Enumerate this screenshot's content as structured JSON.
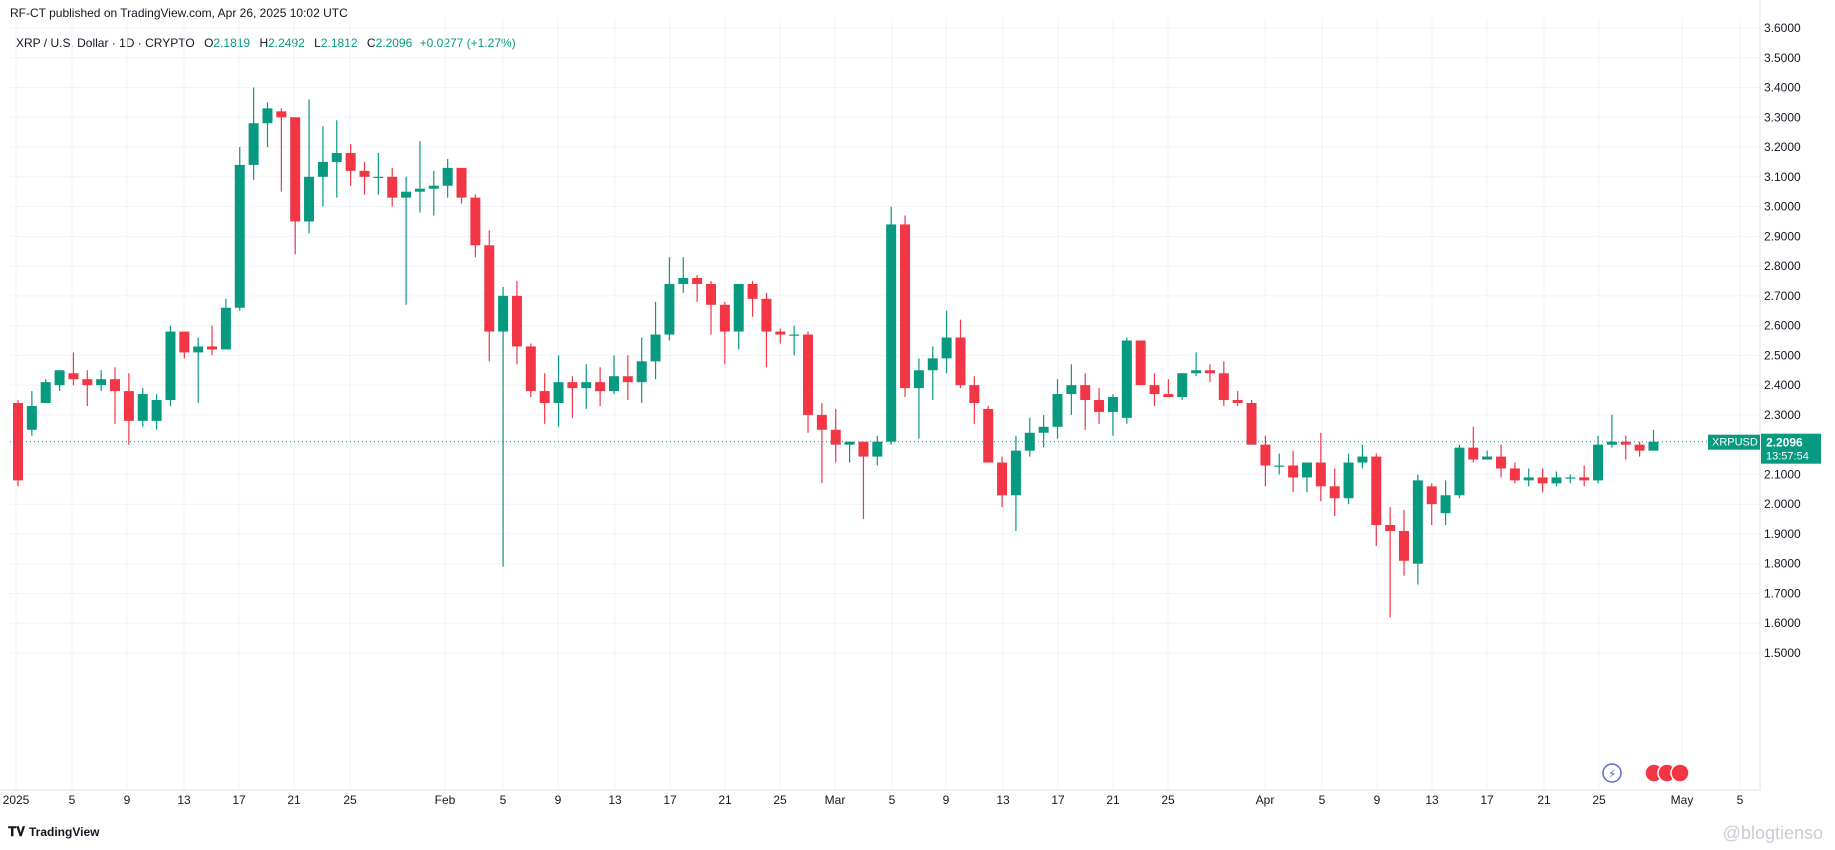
{
  "header": {
    "published": "RF-CT published on TradingView.com, Apr 26, 2025 10:02 UTC"
  },
  "symbol": {
    "name": "XRP / U.S. Dollar · 1D · CRYPTO",
    "o_label": "O",
    "o_value": "2.1819",
    "h_label": "H",
    "h_value": "2.2492",
    "l_label": "L",
    "l_value": "2.1812",
    "c_label": "C",
    "c_value": "2.2096",
    "change": "+0.0277 (+1.27%)"
  },
  "price_label": {
    "ticker": "XRPUSD",
    "price": "2.2096",
    "countdown": "13:57:54"
  },
  "footer": {
    "brand": "TradingView",
    "watermark": "@blogtienso"
  },
  "colors": {
    "up": "#089981",
    "down": "#f23645",
    "grid": "#f0f3fa",
    "text": "#131722"
  },
  "chart_data": {
    "type": "candlestick",
    "y_axis_ticks": [
      "3.6000",
      "3.5000",
      "3.4000",
      "3.3000",
      "3.2000",
      "3.1000",
      "3.0000",
      "2.9000",
      "2.8000",
      "2.7000",
      "2.6000",
      "2.5000",
      "2.4000",
      "2.3000",
      "2.2000",
      "2.1000",
      "2.0000",
      "1.9000",
      "1.8000",
      "1.7000",
      "1.6000",
      "1.5000"
    ],
    "x_axis_labels": [
      "2025",
      "5",
      "9",
      "13",
      "17",
      "21",
      "25",
      "Feb",
      "5",
      "9",
      "13",
      "17",
      "21",
      "25",
      "Mar",
      "5",
      "9",
      "13",
      "17",
      "21",
      "25",
      "Apr",
      "5",
      "9",
      "13",
      "17",
      "21",
      "25",
      "May",
      "5"
    ],
    "ylim": [
      1.45,
      3.63
    ],
    "grid": true,
    "candles": [
      [
        2.34,
        2.35,
        2.06,
        2.08
      ],
      [
        2.25,
        2.38,
        2.23,
        2.33
      ],
      [
        2.34,
        2.42,
        2.34,
        2.41
      ],
      [
        2.4,
        2.45,
        2.38,
        2.45
      ],
      [
        2.44,
        2.51,
        2.4,
        2.42
      ],
      [
        2.42,
        2.45,
        2.33,
        2.4
      ],
      [
        2.4,
        2.45,
        2.38,
        2.42
      ],
      [
        2.42,
        2.46,
        2.27,
        2.38
      ],
      [
        2.38,
        2.44,
        2.2,
        2.28
      ],
      [
        2.28,
        2.39,
        2.26,
        2.37
      ],
      [
        2.28,
        2.37,
        2.25,
        2.35
      ],
      [
        2.35,
        2.6,
        2.33,
        2.58
      ],
      [
        2.58,
        2.58,
        2.49,
        2.51
      ],
      [
        2.51,
        2.56,
        2.34,
        2.53
      ],
      [
        2.53,
        2.6,
        2.5,
        2.52
      ],
      [
        2.52,
        2.69,
        2.52,
        2.66
      ],
      [
        2.66,
        3.2,
        2.65,
        3.14
      ],
      [
        3.14,
        3.4,
        3.09,
        3.28
      ],
      [
        3.28,
        3.35,
        3.2,
        3.33
      ],
      [
        3.32,
        3.33,
        3.05,
        3.3
      ],
      [
        3.3,
        3.3,
        2.84,
        2.95
      ],
      [
        2.95,
        3.36,
        2.91,
        3.1
      ],
      [
        3.1,
        3.27,
        3.0,
        3.15
      ],
      [
        3.15,
        3.29,
        3.03,
        3.18
      ],
      [
        3.18,
        3.21,
        3.07,
        3.12
      ],
      [
        3.12,
        3.15,
        3.04,
        3.1
      ],
      [
        3.1,
        3.18,
        3.04,
        3.1
      ],
      [
        3.1,
        3.13,
        3.0,
        3.03
      ],
      [
        3.03,
        3.1,
        2.67,
        3.05
      ],
      [
        3.05,
        3.22,
        2.98,
        3.06
      ],
      [
        3.06,
        3.12,
        2.97,
        3.07
      ],
      [
        3.07,
        3.16,
        3.03,
        3.13
      ],
      [
        3.13,
        3.13,
        3.01,
        3.03
      ],
      [
        3.03,
        3.04,
        2.83,
        2.87
      ],
      [
        2.87,
        2.92,
        2.48,
        2.58
      ],
      [
        2.58,
        2.73,
        1.79,
        2.7
      ],
      [
        2.7,
        2.75,
        2.47,
        2.53
      ],
      [
        2.53,
        2.54,
        2.36,
        2.38
      ],
      [
        2.38,
        2.44,
        2.27,
        2.34
      ],
      [
        2.34,
        2.5,
        2.26,
        2.41
      ],
      [
        2.41,
        2.43,
        2.29,
        2.39
      ],
      [
        2.39,
        2.47,
        2.32,
        2.41
      ],
      [
        2.41,
        2.46,
        2.33,
        2.38
      ],
      [
        2.38,
        2.5,
        2.37,
        2.43
      ],
      [
        2.43,
        2.5,
        2.35,
        2.41
      ],
      [
        2.41,
        2.56,
        2.34,
        2.48
      ],
      [
        2.48,
        2.68,
        2.42,
        2.57
      ],
      [
        2.57,
        2.83,
        2.55,
        2.74
      ],
      [
        2.74,
        2.83,
        2.71,
        2.76
      ],
      [
        2.76,
        2.77,
        2.68,
        2.74
      ],
      [
        2.74,
        2.75,
        2.57,
        2.67
      ],
      [
        2.67,
        2.68,
        2.47,
        2.58
      ],
      [
        2.58,
        2.74,
        2.52,
        2.74
      ],
      [
        2.74,
        2.75,
        2.63,
        2.69
      ],
      [
        2.69,
        2.71,
        2.46,
        2.58
      ],
      [
        2.58,
        2.59,
        2.54,
        2.57
      ],
      [
        2.57,
        2.6,
        2.5,
        2.57
      ],
      [
        2.57,
        2.58,
        2.24,
        2.3
      ],
      [
        2.3,
        2.34,
        2.07,
        2.25
      ],
      [
        2.25,
        2.32,
        2.14,
        2.2
      ],
      [
        2.2,
        2.21,
        2.14,
        2.21
      ],
      [
        2.21,
        2.21,
        1.95,
        2.16
      ],
      [
        2.16,
        2.23,
        2.13,
        2.21
      ],
      [
        2.21,
        3.0,
        2.2,
        2.94
      ],
      [
        2.94,
        2.97,
        2.36,
        2.39
      ],
      [
        2.39,
        2.49,
        2.22,
        2.45
      ],
      [
        2.45,
        2.53,
        2.35,
        2.49
      ],
      [
        2.49,
        2.65,
        2.44,
        2.56
      ],
      [
        2.56,
        2.62,
        2.39,
        2.4
      ],
      [
        2.4,
        2.43,
        2.27,
        2.34
      ],
      [
        2.32,
        2.33,
        2.14,
        2.14
      ],
      [
        2.14,
        2.16,
        1.99,
        2.03
      ],
      [
        2.03,
        2.23,
        1.91,
        2.18
      ],
      [
        2.18,
        2.29,
        2.16,
        2.24
      ],
      [
        2.24,
        2.3,
        2.19,
        2.26
      ],
      [
        2.26,
        2.42,
        2.22,
        2.37
      ],
      [
        2.37,
        2.47,
        2.3,
        2.4
      ],
      [
        2.4,
        2.44,
        2.25,
        2.35
      ],
      [
        2.35,
        2.39,
        2.27,
        2.31
      ],
      [
        2.31,
        2.37,
        2.23,
        2.36
      ],
      [
        2.29,
        2.56,
        2.27,
        2.55
      ],
      [
        2.55,
        2.55,
        2.42,
        2.4
      ],
      [
        2.4,
        2.44,
        2.33,
        2.37
      ],
      [
        2.37,
        2.42,
        2.36,
        2.36
      ],
      [
        2.36,
        2.44,
        2.35,
        2.44
      ],
      [
        2.44,
        2.51,
        2.43,
        2.45
      ],
      [
        2.45,
        2.47,
        2.41,
        2.44
      ],
      [
        2.44,
        2.48,
        2.33,
        2.35
      ],
      [
        2.35,
        2.38,
        2.33,
        2.34
      ],
      [
        2.34,
        2.35,
        2.2,
        2.2
      ],
      [
        2.2,
        2.23,
        2.06,
        2.13
      ],
      [
        2.13,
        2.17,
        2.1,
        2.13
      ],
      [
        2.13,
        2.18,
        2.04,
        2.09
      ],
      [
        2.09,
        2.12,
        2.04,
        2.14
      ],
      [
        2.14,
        2.24,
        2.01,
        2.06
      ],
      [
        2.06,
        2.12,
        1.96,
        2.02
      ],
      [
        2.02,
        2.17,
        2.0,
        2.14
      ],
      [
        2.14,
        2.2,
        2.12,
        2.16
      ],
      [
        2.16,
        2.17,
        1.86,
        1.93
      ],
      [
        1.93,
        1.99,
        1.62,
        1.91
      ],
      [
        1.91,
        1.98,
        1.76,
        1.81
      ],
      [
        1.8,
        2.1,
        1.73,
        2.08
      ],
      [
        2.06,
        2.07,
        1.93,
        2.0
      ],
      [
        1.97,
        2.08,
        1.93,
        2.03
      ],
      [
        2.03,
        2.2,
        2.02,
        2.19
      ],
      [
        2.19,
        2.26,
        2.14,
        2.15
      ],
      [
        2.15,
        2.18,
        2.15,
        2.16
      ],
      [
        2.16,
        2.2,
        2.09,
        2.12
      ],
      [
        2.12,
        2.14,
        2.07,
        2.08
      ],
      [
        2.08,
        2.12,
        2.06,
        2.09
      ],
      [
        2.09,
        2.12,
        2.04,
        2.07
      ],
      [
        2.07,
        2.11,
        2.06,
        2.09
      ],
      [
        2.09,
        2.1,
        2.07,
        2.09
      ],
      [
        2.09,
        2.13,
        2.06,
        2.08
      ],
      [
        2.08,
        2.23,
        2.07,
        2.2
      ],
      [
        2.2,
        2.3,
        2.19,
        2.21
      ],
      [
        2.21,
        2.23,
        2.15,
        2.2
      ],
      [
        2.2,
        2.21,
        2.16,
        2.18
      ],
      [
        2.18,
        2.25,
        2.18,
        2.21
      ]
    ]
  }
}
